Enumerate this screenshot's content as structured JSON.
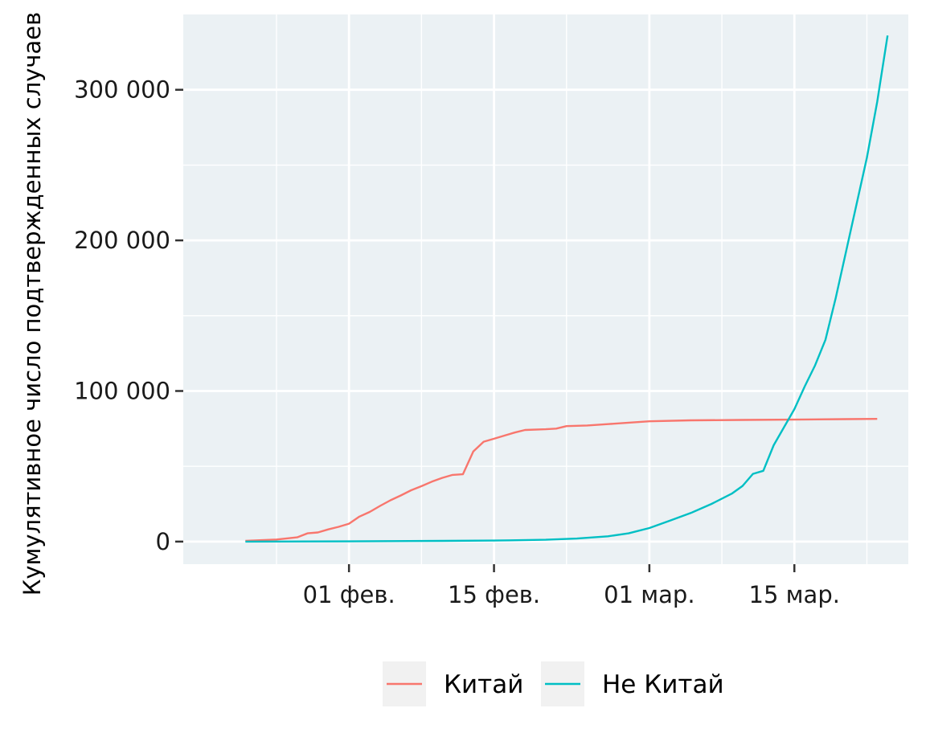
{
  "chart_data": {
    "type": "line",
    "title": "",
    "xlabel": "",
    "ylabel": "Кумулятивное число подтвержденных случаев",
    "x_range": [
      "2020-01-16",
      "2020-03-26"
    ],
    "ylim": [
      -15000,
      350000
    ],
    "grid": true,
    "legend_position": "bottom",
    "x_ticks": [
      {
        "date": "2020-02-01",
        "label": "01 фев."
      },
      {
        "date": "2020-02-15",
        "label": "15 фев."
      },
      {
        "date": "2020-03-01",
        "label": "01 мар."
      },
      {
        "date": "2020-03-15",
        "label": "15 мар."
      }
    ],
    "y_ticks": [
      {
        "value": 0,
        "label": "0"
      },
      {
        "value": 100000,
        "label": "100 000"
      },
      {
        "value": 200000,
        "label": "200 000"
      },
      {
        "value": 300000,
        "label": "300 000"
      }
    ],
    "series": [
      {
        "name": "Китай",
        "color": "#F8766D",
        "points": [
          [
            "2020-01-22",
            550
          ],
          [
            "2020-01-25",
            1400
          ],
          [
            "2020-01-27",
            2800
          ],
          [
            "2020-01-28",
            5500
          ],
          [
            "2020-01-29",
            6100
          ],
          [
            "2020-01-30",
            8100
          ],
          [
            "2020-01-31",
            9800
          ],
          [
            "2020-02-01",
            11900
          ],
          [
            "2020-02-02",
            16600
          ],
          [
            "2020-02-03",
            19700
          ],
          [
            "2020-02-04",
            23700
          ],
          [
            "2020-02-05",
            27400
          ],
          [
            "2020-02-06",
            30600
          ],
          [
            "2020-02-07",
            34100
          ],
          [
            "2020-02-08",
            36800
          ],
          [
            "2020-02-09",
            39800
          ],
          [
            "2020-02-10",
            42300
          ],
          [
            "2020-02-11",
            44300
          ],
          [
            "2020-02-12",
            44700
          ],
          [
            "2020-02-13",
            59800
          ],
          [
            "2020-02-14",
            66300
          ],
          [
            "2020-02-15",
            68300
          ],
          [
            "2020-02-16",
            70400
          ],
          [
            "2020-02-17",
            72400
          ],
          [
            "2020-02-18",
            74100
          ],
          [
            "2020-02-20",
            74600
          ],
          [
            "2020-02-21",
            75000
          ],
          [
            "2020-02-22",
            76700
          ],
          [
            "2020-02-24",
            77100
          ],
          [
            "2020-02-26",
            78000
          ],
          [
            "2020-03-01",
            79900
          ],
          [
            "2020-03-05",
            80500
          ],
          [
            "2020-03-10",
            80800
          ],
          [
            "2020-03-15",
            81000
          ],
          [
            "2020-03-20",
            81300
          ],
          [
            "2020-03-23",
            81500
          ]
        ]
      },
      {
        "name": "Не Китай",
        "color": "#00BFC4",
        "points": [
          [
            "2020-01-22",
            0
          ],
          [
            "2020-02-01",
            130
          ],
          [
            "2020-02-10",
            500
          ],
          [
            "2020-02-15",
            700
          ],
          [
            "2020-02-20",
            1200
          ],
          [
            "2020-02-23",
            2000
          ],
          [
            "2020-02-26",
            3500
          ],
          [
            "2020-02-28",
            5500
          ],
          [
            "2020-03-01",
            9000
          ],
          [
            "2020-03-03",
            14000
          ],
          [
            "2020-03-05",
            19000
          ],
          [
            "2020-03-07",
            25000
          ],
          [
            "2020-03-09",
            32000
          ],
          [
            "2020-03-10",
            37000
          ],
          [
            "2020-03-11",
            45000
          ],
          [
            "2020-03-12",
            47000
          ],
          [
            "2020-03-13",
            64000
          ],
          [
            "2020-03-14",
            76000
          ],
          [
            "2020-03-15",
            88000
          ],
          [
            "2020-03-16",
            103000
          ],
          [
            "2020-03-17",
            117000
          ],
          [
            "2020-03-18",
            134000
          ],
          [
            "2020-03-19",
            162000
          ],
          [
            "2020-03-20",
            193000
          ],
          [
            "2020-03-21",
            224000
          ],
          [
            "2020-03-22",
            255000
          ],
          [
            "2020-03-23",
            292000
          ],
          [
            "2020-03-24",
            336000
          ]
        ]
      }
    ]
  },
  "legend": {
    "items": [
      {
        "label": "Китай",
        "color": "#F8766D"
      },
      {
        "label": "Не Китай",
        "color": "#00BFC4"
      }
    ]
  }
}
